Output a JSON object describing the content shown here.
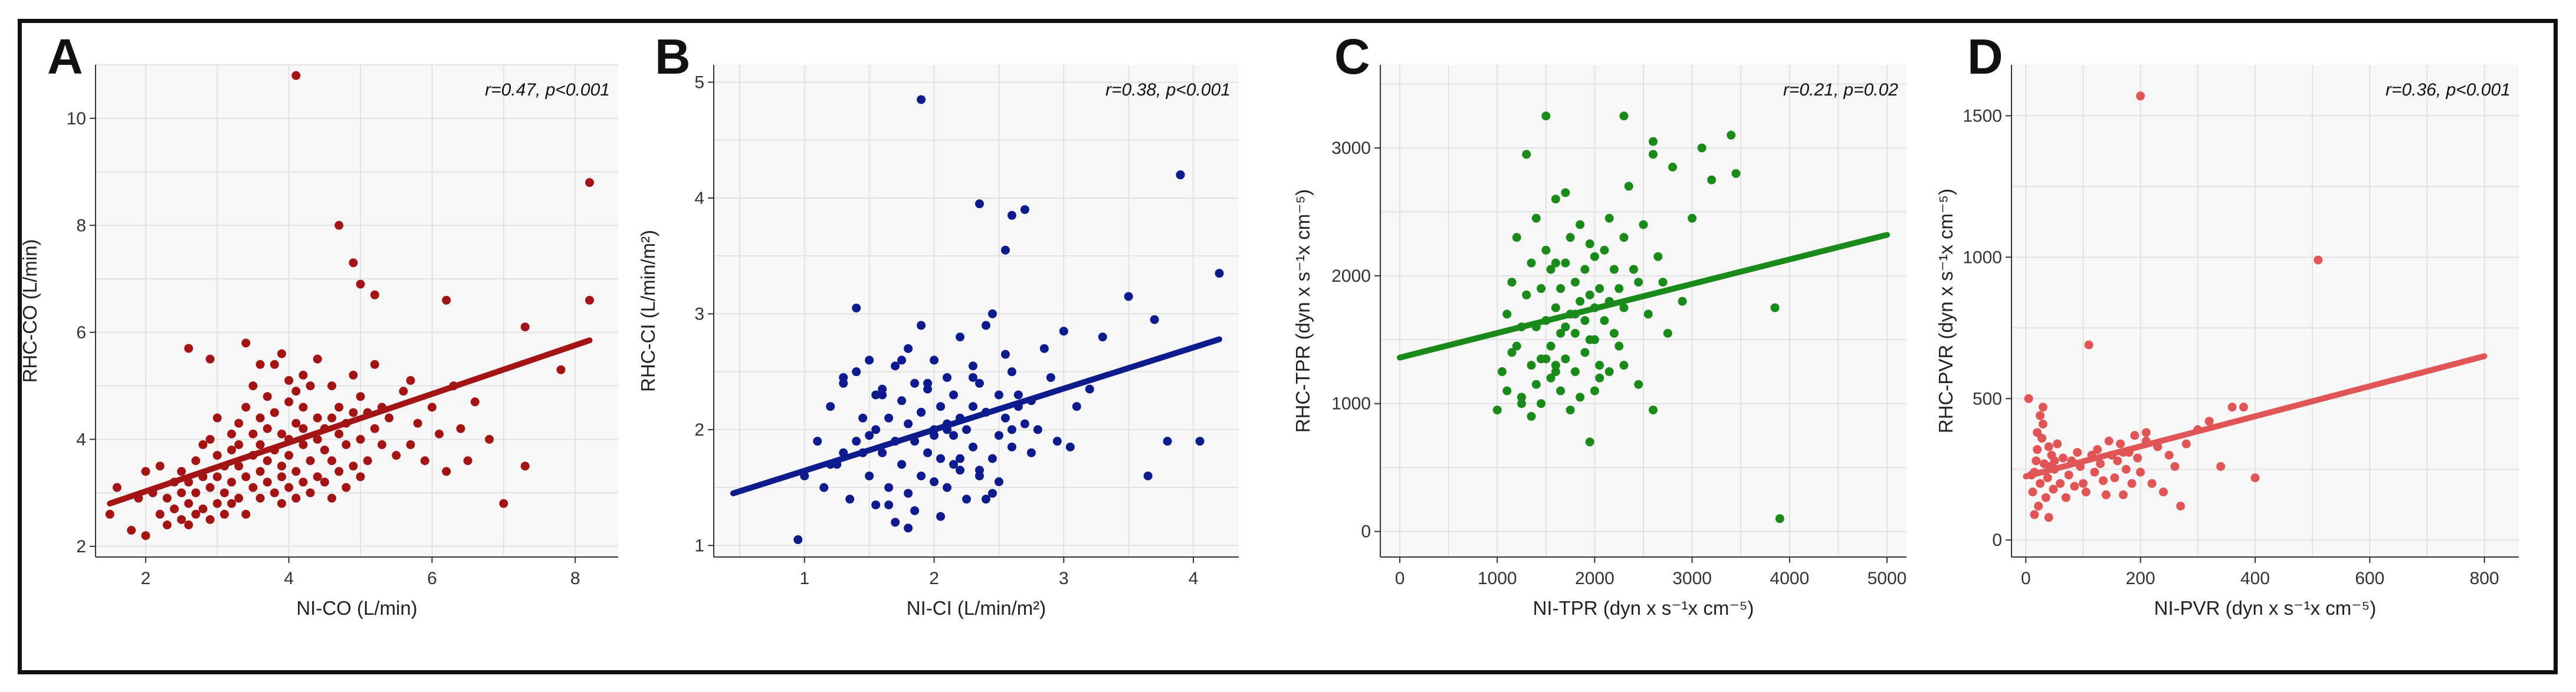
{
  "chart_data": [
    {
      "panel": "A",
      "type": "scatter",
      "xlabel": "NI-CO (L/min)",
      "ylabel": "RHC-CO (L/min)",
      "xlim": [
        1.3,
        8.6
      ],
      "ylim": [
        1.8,
        11.0
      ],
      "xticks": [
        2,
        4,
        6,
        8
      ],
      "yticks": [
        2,
        4,
        6,
        8,
        10
      ],
      "annotation": "r=0.47, p<0.001",
      "color": "#a31515",
      "grid": true,
      "fit": {
        "x": [
          1.5,
          8.2
        ],
        "y": [
          2.8,
          5.85
        ]
      },
      "points": {
        "x": [
          1.5,
          1.6,
          1.8,
          1.9,
          2.0,
          2.0,
          2.1,
          2.2,
          2.2,
          2.3,
          2.3,
          2.4,
          2.4,
          2.5,
          2.5,
          2.5,
          2.6,
          2.6,
          2.6,
          2.7,
          2.7,
          2.7,
          2.8,
          2.8,
          2.8,
          2.9,
          2.9,
          2.9,
          3.0,
          3.0,
          3.0,
          3.0,
          3.1,
          3.1,
          3.1,
          3.2,
          3.2,
          3.2,
          3.2,
          3.3,
          3.3,
          3.3,
          3.3,
          3.4,
          3.4,
          3.4,
          3.5,
          3.5,
          3.5,
          3.5,
          3.6,
          3.6,
          3.6,
          3.6,
          3.7,
          3.7,
          3.7,
          3.7,
          3.8,
          3.8,
          3.8,
          3.8,
          3.9,
          3.9,
          3.9,
          3.9,
          4.0,
          4.0,
          4.0,
          4.0,
          4.0,
          4.1,
          4.1,
          4.1,
          4.1,
          4.2,
          4.2,
          4.2,
          4.2,
          4.3,
          4.3,
          4.3,
          4.4,
          4.4,
          4.4,
          4.4,
          4.5,
          4.5,
          4.5,
          4.6,
          4.6,
          4.6,
          4.6,
          4.7,
          4.7,
          4.7,
          4.8,
          4.8,
          4.8,
          4.9,
          4.9,
          4.9,
          5.0,
          5.0,
          5.0,
          5.1,
          5.1,
          5.2,
          5.2,
          5.3,
          5.3,
          5.4,
          5.5,
          5.6,
          5.7,
          5.8,
          5.9,
          6.0,
          6.1,
          6.2,
          6.3,
          6.4,
          6.5,
          6.6,
          6.8,
          7.0,
          7.3,
          7.8,
          8.2,
          8.2,
          4.1,
          4.7,
          4.9,
          5.0,
          5.2,
          2.6,
          3.4,
          3.9,
          6.2,
          7.3,
          2.9,
          3.6,
          4.2,
          5.7
        ],
        "y": [
          2.6,
          3.1,
          2.3,
          2.9,
          3.4,
          2.2,
          3.0,
          2.6,
          3.5,
          2.9,
          2.4,
          3.2,
          2.7,
          3.0,
          2.5,
          3.4,
          2.8,
          3.2,
          2.4,
          3.0,
          3.6,
          2.6,
          3.3,
          2.7,
          3.9,
          3.1,
          2.5,
          4.0,
          3.3,
          2.8,
          3.7,
          4.4,
          3.0,
          3.5,
          2.6,
          3.8,
          3.2,
          4.1,
          2.8,
          3.5,
          4.3,
          2.9,
          3.9,
          3.3,
          4.6,
          2.6,
          3.7,
          3.1,
          4.1,
          5.0,
          3.4,
          4.4,
          2.9,
          3.9,
          3.6,
          4.8,
          3.2,
          4.2,
          3.8,
          3.0,
          4.5,
          5.4,
          3.5,
          4.1,
          2.8,
          3.3,
          4.0,
          4.7,
          3.1,
          3.7,
          5.1,
          4.3,
          3.4,
          4.9,
          2.9,
          3.9,
          4.6,
          3.2,
          4.2,
          3.6,
          5.0,
          3.0,
          4.0,
          4.4,
          3.3,
          5.5,
          3.8,
          4.2,
          3.2,
          4.4,
          3.6,
          5.0,
          2.9,
          4.1,
          3.4,
          4.6,
          3.9,
          3.1,
          4.3,
          4.5,
          3.5,
          5.2,
          4.0,
          3.3,
          4.8,
          4.5,
          3.6,
          4.2,
          5.4,
          3.9,
          4.6,
          4.4,
          3.7,
          4.9,
          3.9,
          4.3,
          3.6,
          4.6,
          4.1,
          3.4,
          5.0,
          4.2,
          3.6,
          4.7,
          4.0,
          2.8,
          3.5,
          5.3,
          8.8,
          6.6,
          10.8,
          8.0,
          7.3,
          6.9,
          6.7,
          5.7,
          5.8,
          5.6,
          6.6,
          6.1,
          5.5,
          5.4,
          5.2,
          5.1
        ]
      }
    },
    {
      "panel": "B",
      "type": "scatter",
      "xlabel": "NI-CI (L/min/m²)",
      "ylabel": "RHC-CI (L/min/m²)",
      "xlim": [
        0.3,
        4.35
      ],
      "ylim": [
        0.9,
        5.15
      ],
      "xticks": [
        1,
        2,
        3,
        4
      ],
      "yticks": [
        1,
        2,
        3,
        4,
        5
      ],
      "annotation": "r=0.38, p<0.001",
      "color": "#0d1b8c",
      "grid": true,
      "fit": {
        "x": [
          0.45,
          4.2
        ],
        "y": [
          1.45,
          2.78
        ]
      },
      "points": {
        "x": [
          0.95,
          1.0,
          1.1,
          1.15,
          1.2,
          1.25,
          1.3,
          1.3,
          1.35,
          1.4,
          1.4,
          1.45,
          1.5,
          1.5,
          1.55,
          1.55,
          1.6,
          1.6,
          1.65,
          1.65,
          1.7,
          1.7,
          1.7,
          1.75,
          1.75,
          1.8,
          1.8,
          1.8,
          1.85,
          1.85,
          1.9,
          1.9,
          1.9,
          1.95,
          1.95,
          2.0,
          2.0,
          2.0,
          2.05,
          2.05,
          2.1,
          2.1,
          2.1,
          2.15,
          2.15,
          2.2,
          2.2,
          2.2,
          2.25,
          2.25,
          2.3,
          2.3,
          2.3,
          2.35,
          2.35,
          2.4,
          2.4,
          2.45,
          2.45,
          2.5,
          2.5,
          2.55,
          2.55,
          2.6,
          2.6,
          2.65,
          2.7,
          2.7,
          2.75,
          2.8,
          2.85,
          2.9,
          2.95,
          3.0,
          3.1,
          3.2,
          3.3,
          3.5,
          3.65,
          3.7,
          3.8,
          3.9,
          4.05,
          4.2,
          1.2,
          1.4,
          1.6,
          1.9,
          2.3,
          2.5,
          2.6,
          3.05,
          1.85,
          2.2,
          2.45,
          1.75,
          2.05,
          2.35,
          2.65,
          1.5,
          1.65,
          1.95,
          2.15,
          2.55,
          1.3,
          1.45,
          1.8,
          2.0,
          2.4,
          2.75,
          1.55,
          2.1
        ],
        "y": [
          1.05,
          1.6,
          1.9,
          1.5,
          2.2,
          1.7,
          1.8,
          2.4,
          1.4,
          3.05,
          1.9,
          2.1,
          1.6,
          2.6,
          2.0,
          1.35,
          1.8,
          2.3,
          1.5,
          2.1,
          1.9,
          2.55,
          1.2,
          1.7,
          2.25,
          2.05,
          1.45,
          2.7,
          1.9,
          2.4,
          1.6,
          2.15,
          2.9,
          1.8,
          2.35,
          2.0,
          1.55,
          2.6,
          2.2,
          1.75,
          2.05,
          2.45,
          1.5,
          1.95,
          2.3,
          2.1,
          1.65,
          2.8,
          2.0,
          1.4,
          2.2,
          2.55,
          1.85,
          2.4,
          1.6,
          2.15,
          2.9,
          1.75,
          3.0,
          2.3,
          1.95,
          2.1,
          3.55,
          2.5,
          1.85,
          2.3,
          2.05,
          3.9,
          2.25,
          2.0,
          2.7,
          2.45,
          1.9,
          2.85,
          2.2,
          2.35,
          2.8,
          3.15,
          1.6,
          2.95,
          1.9,
          4.2,
          1.9,
          3.35,
          1.7,
          2.5,
          2.35,
          2.15,
          2.45,
          1.55,
          2.0,
          1.85,
          1.3,
          1.75,
          1.45,
          2.6,
          1.25,
          1.65,
          2.2,
          1.95,
          1.35,
          2.4,
          1.7,
          2.65,
          2.45,
          1.8,
          1.15,
          1.95,
          1.4,
          1.8,
          2.3,
          2.0
        ]
      },
      "outliers": {
        "x": [
          1.9,
          2.35,
          2.6,
          3.9
        ],
        "y": [
          4.85,
          3.95,
          3.85,
          4.2
        ]
      }
    },
    {
      "panel": "C",
      "type": "scatter",
      "xlabel": "NI-TPR (dyn x s⁻¹x cm⁻⁵)",
      "ylabel": "RHC-TPR (dyn x s⁻¹x cm⁻⁵)",
      "xlim": [
        -200,
        5200
      ],
      "ylim": [
        -200,
        3650
      ],
      "xticks": [
        0,
        1000,
        2000,
        3000,
        4000,
        5000
      ],
      "yticks": [
        0,
        1000,
        2000,
        3000
      ],
      "annotation": "r=0.21, p=0.02",
      "color": "#1a8a1a",
      "grid": true,
      "fit": {
        "x": [
          0,
          5000
        ],
        "y": [
          1360,
          2320
        ]
      },
      "points": {
        "x": [
          1000,
          1050,
          1100,
          1100,
          1150,
          1200,
          1200,
          1250,
          1250,
          1300,
          1300,
          1350,
          1350,
          1400,
          1400,
          1400,
          1450,
          1450,
          1500,
          1500,
          1500,
          1550,
          1550,
          1600,
          1600,
          1600,
          1650,
          1650,
          1700,
          1700,
          1700,
          1750,
          1750,
          1800,
          1800,
          1800,
          1850,
          1850,
          1900,
          1900,
          1900,
          1950,
          1950,
          2000,
          2000,
          2000,
          2050,
          2050,
          2100,
          2100,
          2150,
          2150,
          2200,
          2200,
          2250,
          2300,
          2300,
          2350,
          2400,
          2450,
          2500,
          2550,
          2600,
          2650,
          2700,
          2750,
          2800,
          2900,
          3000,
          3100,
          3200,
          3400,
          3450,
          3850,
          3900,
          1450,
          1550,
          1950,
          2300,
          1350,
          1650,
          2050,
          1250,
          1750,
          2150,
          2450,
          1850,
          1600,
          2000,
          2600,
          1150,
          1700,
          1950,
          2250,
          1500,
          1800
        ],
        "y": [
          950,
          1250,
          1700,
          1100,
          1950,
          1450,
          2300,
          1050,
          1600,
          1850,
          2950,
          1300,
          2100,
          1600,
          1150,
          2450,
          1900,
          1350,
          2200,
          1650,
          3250,
          1450,
          2050,
          1750,
          1250,
          2600,
          1900,
          1550,
          2100,
          1350,
          2650,
          1700,
          2300,
          1550,
          1950,
          1250,
          1800,
          2400,
          1650,
          2050,
          1400,
          1850,
          2250,
          1750,
          1500,
          2150,
          1900,
          1300,
          2200,
          1650,
          1800,
          2450,
          1550,
          2050,
          1900,
          1750,
          2300,
          2700,
          2050,
          1950,
          2400,
          1700,
          2950,
          2150,
          1950,
          1550,
          2850,
          1800,
          2450,
          3000,
          2750,
          3100,
          2800,
          1750,
          100,
          1000,
          1200,
          700,
          1300,
          900,
          1100,
          1200,
          1000,
          950,
          1250,
          1150,
          1050,
          1300,
          1100,
          950,
          1400,
          1600,
          1500,
          1450,
          1350,
          1700
        ]
      },
      "outliers": {
        "x": [
          2300,
          1600,
          2600
        ],
        "y": [
          3250,
          2100,
          3050
        ]
      }
    },
    {
      "panel": "D",
      "type": "scatter",
      "xlabel": "NI-PVR (dyn x s⁻¹x cm⁻⁵)",
      "ylabel": "RHC-PVR (dyn x s⁻¹x cm⁻⁵)",
      "xlim": [
        -25,
        860
      ],
      "ylim": [
        -60,
        1680
      ],
      "xticks": [
        0,
        200,
        400,
        600,
        800
      ],
      "yticks": [
        0,
        500,
        1000,
        1500
      ],
      "annotation": "r=0.36, p<0.001",
      "color": "#e05555",
      "grid": true,
      "fit": {
        "x": [
          0,
          800
        ],
        "y": [
          225,
          650
        ]
      },
      "points": {
        "x": [
          5,
          10,
          12,
          15,
          18,
          20,
          22,
          25,
          28,
          30,
          32,
          35,
          38,
          40,
          42,
          45,
          48,
          50,
          55,
          60,
          65,
          70,
          75,
          80,
          85,
          90,
          95,
          100,
          105,
          110,
          115,
          120,
          125,
          130,
          135,
          140,
          145,
          150,
          155,
          160,
          165,
          170,
          175,
          180,
          185,
          190,
          195,
          200,
          210,
          220,
          230,
          240,
          250,
          260,
          270,
          280,
          300,
          320,
          340,
          360,
          380,
          400,
          20,
          30,
          40,
          15,
          25,
          50,
          170,
          210
        ],
        "y": [
          500,
          230,
          170,
          90,
          280,
          320,
          120,
          200,
          360,
          470,
          270,
          150,
          220,
          80,
          260,
          300,
          180,
          250,
          340,
          200,
          290,
          150,
          230,
          280,
          190,
          310,
          260,
          200,
          170,
          690,
          300,
          240,
          320,
          270,
          210,
          160,
          350,
          300,
          220,
          280,
          340,
          160,
          250,
          310,
          200,
          370,
          290,
          240,
          380,
          200,
          330,
          170,
          300,
          260,
          120,
          340,
          390,
          420,
          260,
          470,
          470,
          220,
          380,
          410,
          330,
          240,
          440,
          280,
          310,
          350
        ]
      },
      "outliers": {
        "x": [
          200,
          510
        ],
        "y": [
          1570,
          990
        ]
      }
    }
  ]
}
